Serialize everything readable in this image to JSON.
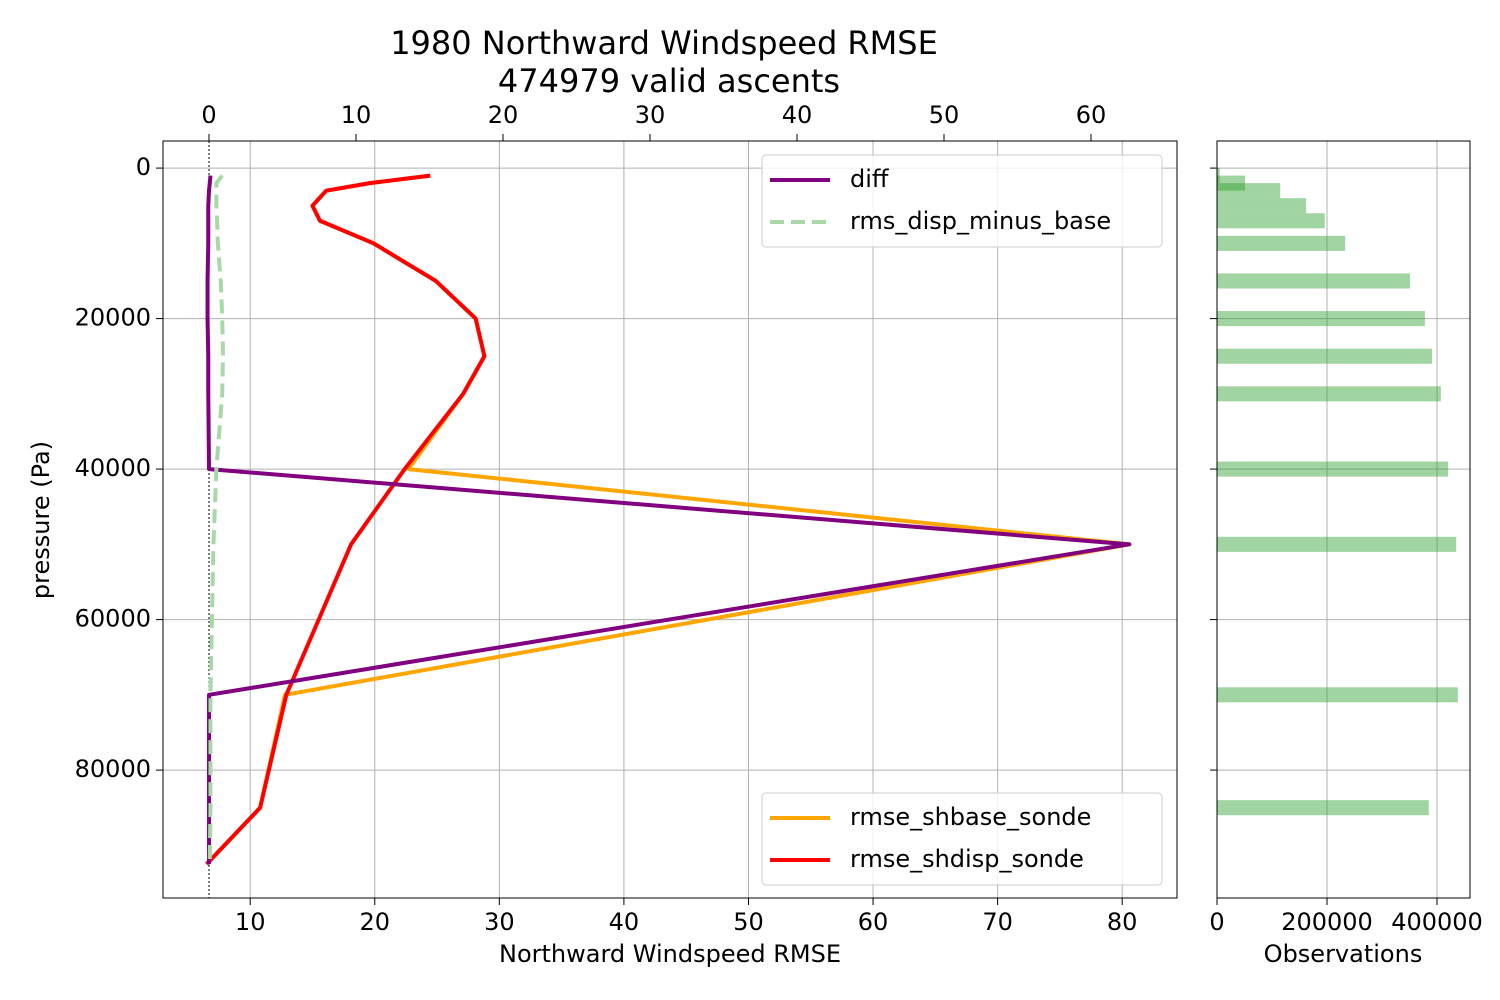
{
  "chart_data": [
    {
      "type": "line",
      "title": "1980 Northward Windspeed RMSE",
      "subtitle": "474979 valid ascents",
      "xlabel": "Northward Windspeed RMSE",
      "ylabel": "pressure (Pa)",
      "y": [
        1000,
        2000,
        3000,
        5000,
        7000,
        10000,
        15000,
        20000,
        25000,
        30000,
        40000,
        50000,
        70000,
        85000,
        92500
      ],
      "xlim": [
        3.0,
        84.4
      ],
      "xticks": [
        10,
        20,
        30,
        40,
        50,
        60,
        70,
        80
      ],
      "x2lim": [
        -3.13,
        65.85
      ],
      "x2ticks": [
        0,
        10,
        20,
        30,
        40,
        50,
        60
      ],
      "ylim": [
        -3600,
        97000
      ],
      "y_inverted": true,
      "yticks": [
        0,
        20000,
        40000,
        60000,
        80000
      ],
      "grid": true,
      "x2_refline": 0,
      "series": [
        {
          "name": "rmse_shbase_sonde",
          "color": "#ffa500",
          "legend": "lower right",
          "dash": false,
          "values": [
            24.45,
            19.6,
            16.1,
            15.0,
            15.6,
            19.9,
            24.9,
            28.1,
            28.8,
            27.1,
            22.7,
            80.6,
            12.8,
            10.8,
            6.5
          ]
        },
        {
          "name": "rmse_shdisp_sonde",
          "color": "#ff0000",
          "legend": "lower right",
          "dash": false,
          "values": [
            24.45,
            19.6,
            16.1,
            15.0,
            15.6,
            19.9,
            24.9,
            28.1,
            28.8,
            27.1,
            22.4,
            18.1,
            12.9,
            10.8,
            6.5
          ]
        },
        {
          "name": "diff",
          "color": "#800080",
          "legend": "upper right",
          "axis": "x2",
          "dash": false,
          "values": [
            0.1,
            0.05,
            0.0,
            -0.05,
            -0.05,
            -0.05,
            -0.1,
            -0.1,
            -0.05,
            -0.05,
            0.0,
            62.6,
            0.0,
            0.0,
            0.0
          ]
        },
        {
          "name": "rms_disp_minus_base",
          "color": "#a8d8a8",
          "legend": "upper right",
          "axis": "x2",
          "dash": true,
          "values": [
            0.9,
            0.5,
            0.5,
            0.5,
            0.55,
            0.6,
            0.8,
            0.9,
            0.95,
            0.9,
            0.5,
            0.3,
            0.1,
            0.1,
            0.05
          ]
        }
      ]
    },
    {
      "type": "barh",
      "xlabel": "Observations",
      "y": [
        1000,
        2000,
        3000,
        5000,
        7000,
        10000,
        15000,
        20000,
        25000,
        30000,
        40000,
        50000,
        70000,
        85000
      ],
      "values": [
        5000,
        51000,
        115000,
        162000,
        196000,
        233000,
        351000,
        378000,
        391000,
        407000,
        420000,
        435000,
        438000,
        385000
      ],
      "bar_height": 2000,
      "color": "#2ca02c",
      "xlim": [
        0,
        460000
      ],
      "xticks": [
        0,
        200000,
        400000
      ],
      "ylim": [
        -3600,
        97000
      ],
      "y_inverted": true,
      "yticks": [
        0,
        20000,
        40000,
        60000,
        80000
      ],
      "grid": true
    }
  ]
}
